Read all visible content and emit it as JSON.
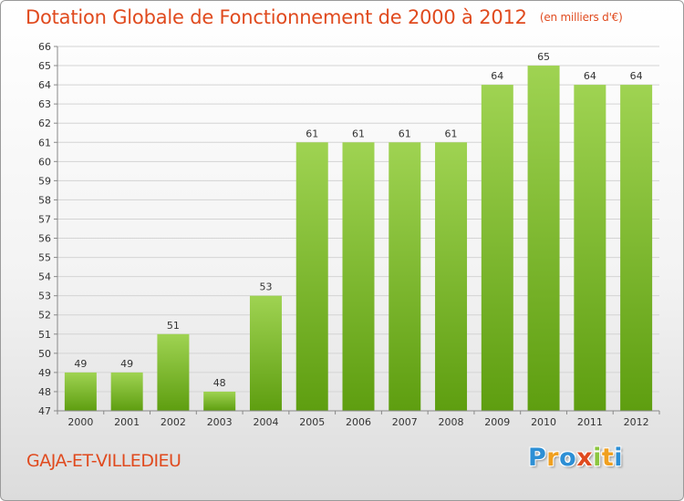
{
  "title": "Dotation Globale de Fonctionnement de 2000 à 2012",
  "unit": "(en milliers d'€)",
  "commune": "GAJA-ET-VILLEDIEU",
  "logo": {
    "letters": [
      "P",
      "r",
      "o",
      "x",
      "i",
      "t",
      "i"
    ],
    "colors": [
      "#2d8fd5",
      "#f0a020",
      "#2d8fd5",
      "#e04a1e",
      "#8cc63f",
      "#f0a020",
      "#2d8fd5"
    ]
  },
  "colors": {
    "bar_top": "#9fd352",
    "bar_bottom": "#5e9e10",
    "title": "#e04a1e"
  },
  "chart_data": {
    "type": "bar",
    "title": "Dotation Globale de Fonctionnement de 2000 à 2012",
    "xlabel": "",
    "ylabel": "",
    "ylim": [
      47,
      66
    ],
    "yticks": [
      47,
      48,
      49,
      50,
      51,
      52,
      53,
      54,
      55,
      56,
      57,
      58,
      59,
      60,
      61,
      62,
      63,
      64,
      65,
      66
    ],
    "grid": true,
    "categories": [
      "2000",
      "2001",
      "2002",
      "2003",
      "2004",
      "2005",
      "2006",
      "2007",
      "2008",
      "2009",
      "2010",
      "2011",
      "2012"
    ],
    "values": [
      49,
      49,
      51,
      48,
      53,
      61,
      61,
      61,
      61,
      64,
      65,
      64,
      64
    ]
  }
}
